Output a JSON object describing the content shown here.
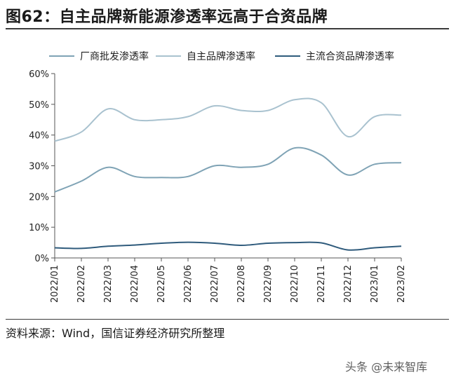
{
  "figure": {
    "title": "图62：自主品牌新能源渗透率远高于合资品牌",
    "source": "资料来源：Wind，国信证券经济研究所整理",
    "watermark": "头条 @未来智库"
  },
  "chart_data": {
    "type": "line",
    "title": "",
    "xlabel": "",
    "ylabel": "",
    "y_tick_labels": [
      "0%",
      "10%",
      "20%",
      "30%",
      "40%",
      "50%",
      "60%"
    ],
    "ylim": [
      0,
      60
    ],
    "grid": false,
    "legend_position": "top",
    "x": [
      "2022/01",
      "2022/02",
      "2022/03",
      "2022/04",
      "2022/05",
      "2022/06",
      "2022/07",
      "2022/08",
      "2022/09",
      "2022/10",
      "2022/11",
      "2022/12",
      "2023/01",
      "2023/02"
    ],
    "series": [
      {
        "name": "厂商批发渗透率",
        "color": "#7fa3b5",
        "values": [
          21.5,
          25,
          29.5,
          26.5,
          26.2,
          26.5,
          30,
          29.5,
          30.5,
          35.8,
          33.5,
          27,
          30.5,
          31
        ]
      },
      {
        "name": "自主品牌渗透率",
        "color": "#a9c2cf",
        "values": [
          38,
          41,
          48.5,
          45,
          45,
          46,
          49.5,
          48,
          48,
          51.5,
          50.5,
          39.5,
          46,
          46.5
        ]
      },
      {
        "name": "主流合资品牌渗透率",
        "color": "#2f5b7c",
        "values": [
          3.3,
          3.1,
          3.8,
          4.2,
          4.8,
          5.1,
          4.8,
          4.1,
          4.8,
          5,
          4.9,
          2.6,
          3.3,
          3.8
        ]
      }
    ]
  }
}
